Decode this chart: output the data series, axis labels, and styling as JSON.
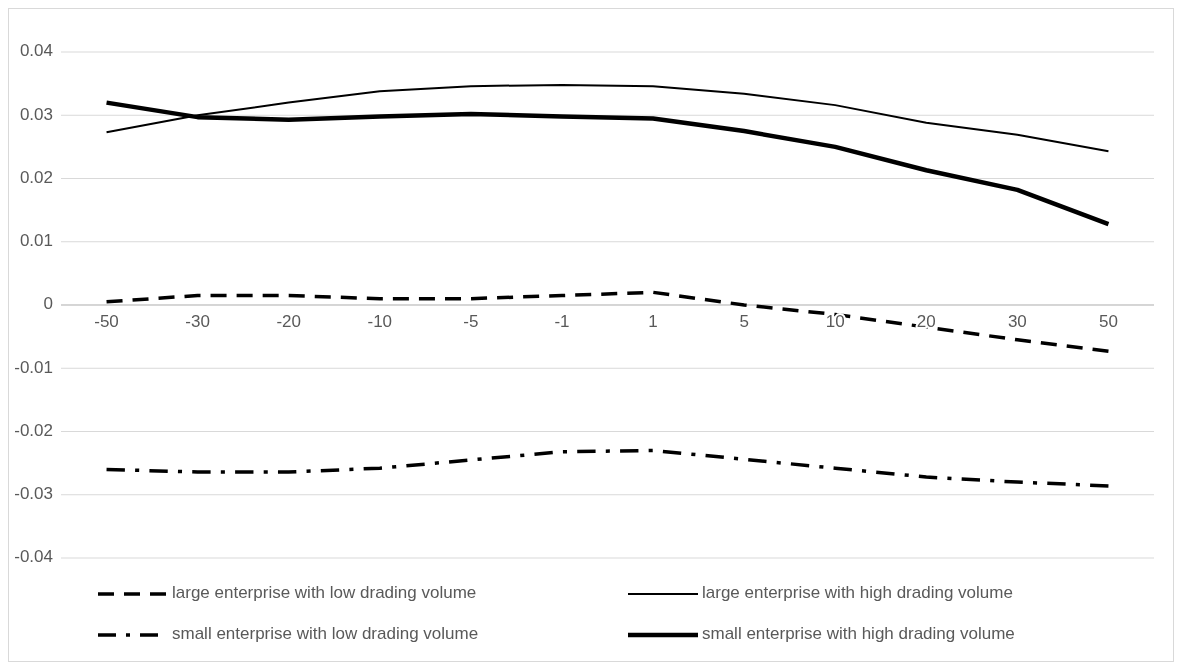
{
  "chart_data": {
    "type": "line",
    "categories": [
      "-50",
      "-30",
      "-20",
      "-10",
      "-5",
      "-1",
      "1",
      "5",
      "10",
      "20",
      "30",
      "50"
    ],
    "series": [
      {
        "name": "large enterprise with low drading volume",
        "color": "#000000",
        "line_style": "dashed",
        "values": [
          0.0005,
          0.0015,
          0.0015,
          0.001,
          0.001,
          0.0015,
          0.002,
          0,
          -0.0015,
          -0.0035,
          -0.0055,
          -0.0073
        ]
      },
      {
        "name": "large enterprise with high drading volume",
        "color": "#000000",
        "line_style": "solid",
        "values": [
          0.0273,
          0.03,
          0.032,
          0.0338,
          0.0346,
          0.0348,
          0.0346,
          0.0334,
          0.0316,
          0.0288,
          0.0269,
          0.0243
        ]
      },
      {
        "name": "small enterprise with low drading volume",
        "color": "#000000",
        "line_style": "dashdot",
        "values": [
          -0.026,
          -0.0264,
          -0.0264,
          -0.0258,
          -0.0245,
          -0.0232,
          -0.023,
          -0.0244,
          -0.0258,
          -0.0272,
          -0.028,
          -0.0286
        ]
      },
      {
        "name": "small enterprise with high drading volume",
        "color": "#000000",
        "line_style": "solid",
        "values": [
          0.032,
          0.0297,
          0.0293,
          0.0298,
          0.0302,
          0.0298,
          0.0295,
          0.0275,
          0.025,
          0.0213,
          0.0182,
          0.0128
        ]
      }
    ],
    "ylim": [
      -0.04,
      0.04
    ],
    "yticks": [
      -0.04,
      -0.03,
      -0.02,
      -0.01,
      0,
      0.01,
      0.02,
      0.03,
      0.04
    ],
    "grid": "y",
    "legend": "bottom",
    "marker": "none"
  }
}
